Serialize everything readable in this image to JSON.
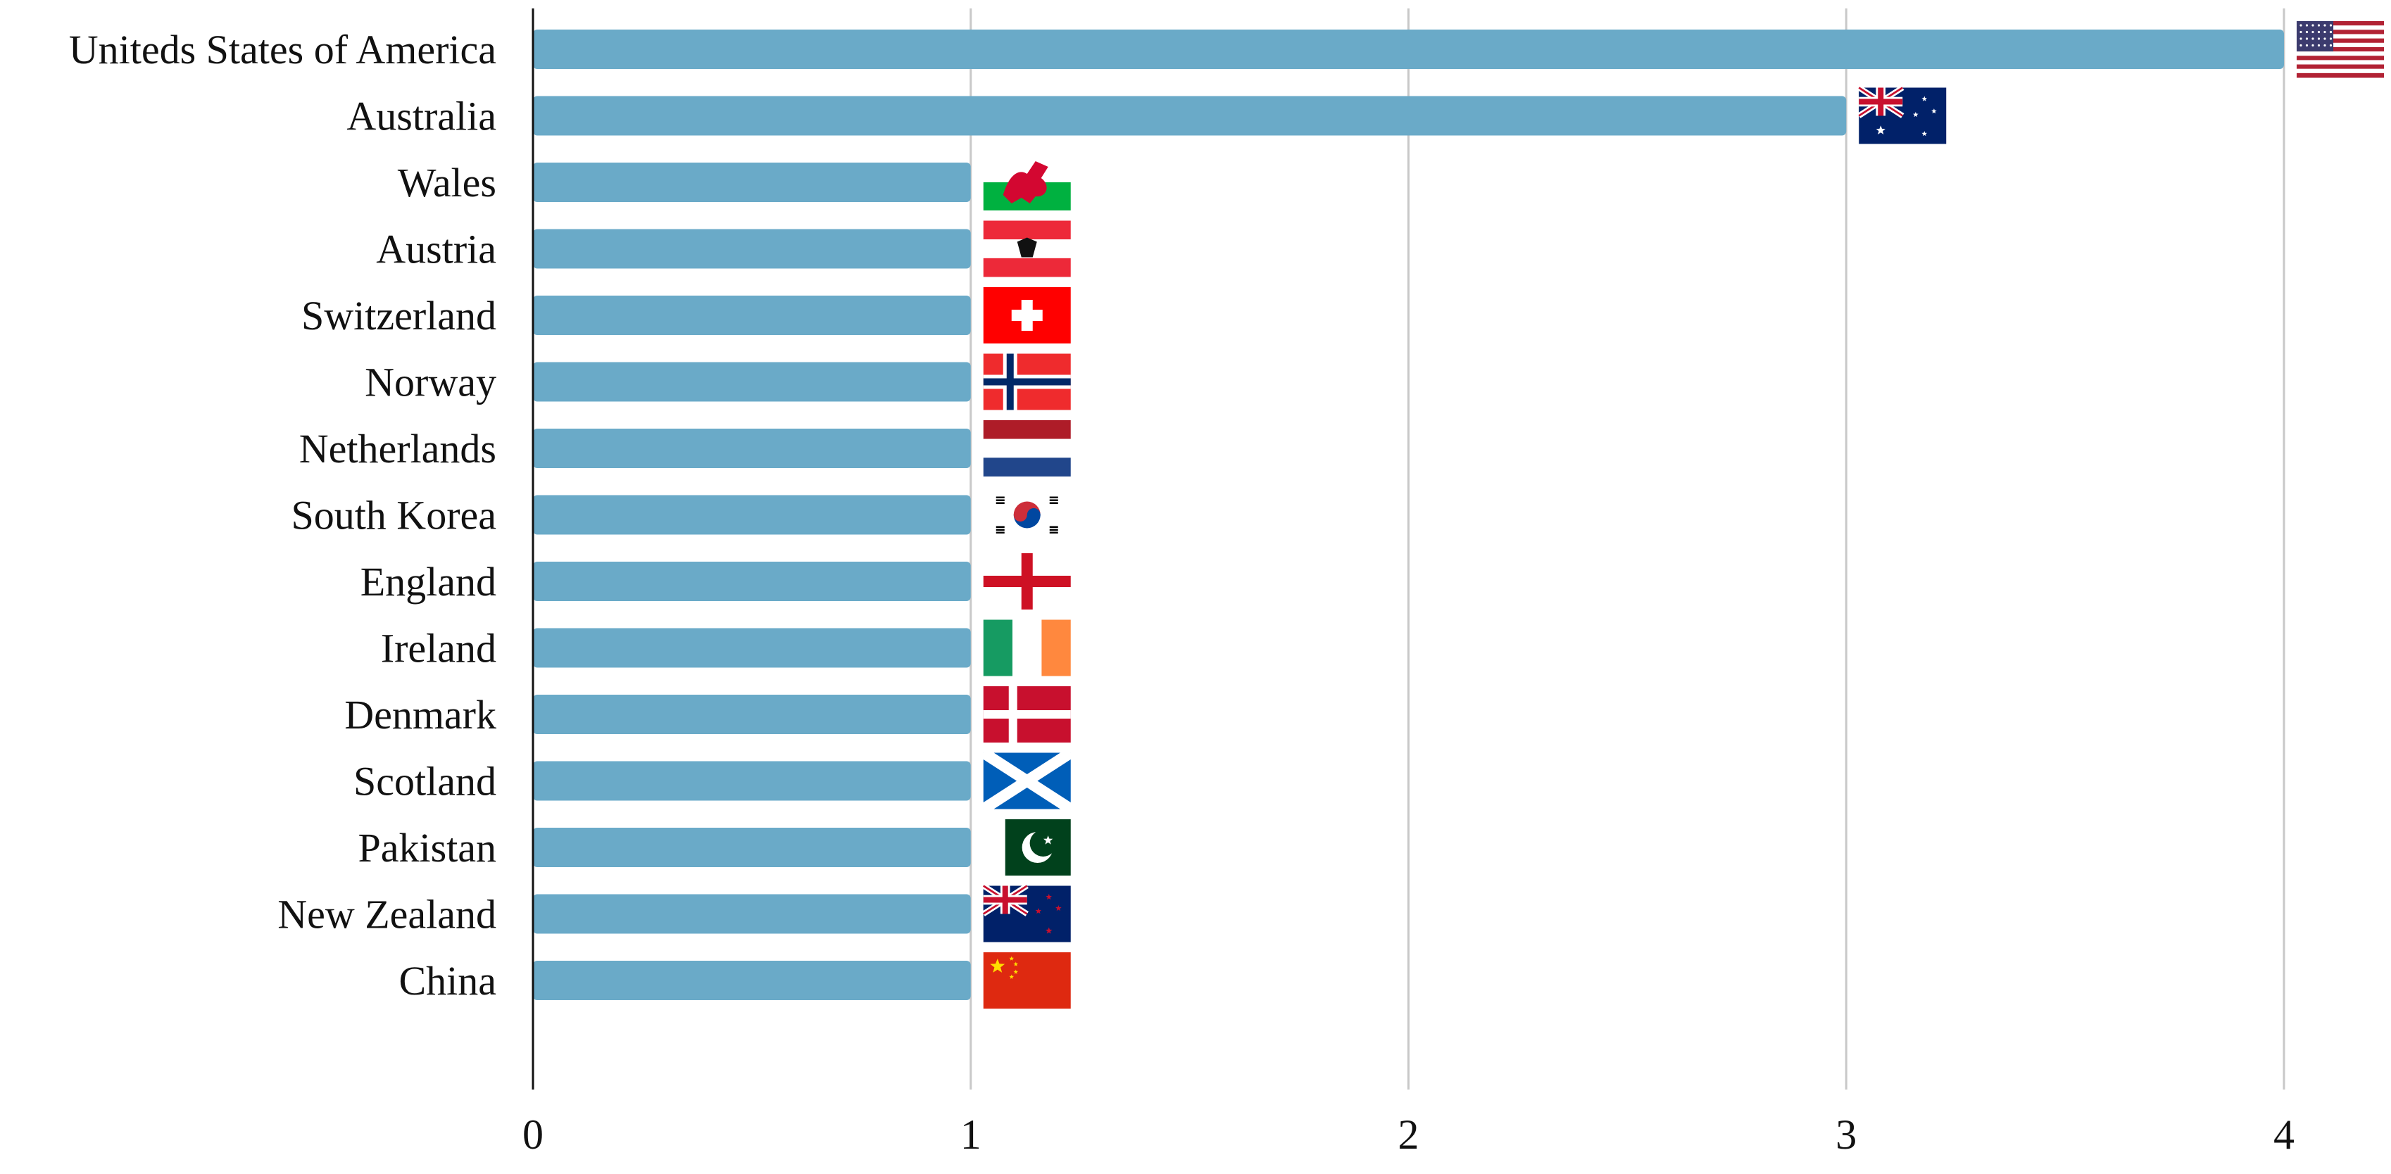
{
  "colors": {
    "bar": "#6aaac8",
    "grid": "#c8c8c8",
    "axis": "#111111",
    "text": "#111111"
  },
  "chart_data": {
    "type": "bar",
    "orientation": "horizontal",
    "categories": [
      "Uniteds States of America",
      "Australia",
      "Wales",
      "Austria",
      "Switzerland",
      "Norway",
      "Netherlands",
      "South Korea",
      "England",
      "Ireland",
      "Denmark",
      "Scotland",
      "Pakistan",
      "New Zealand",
      "China"
    ],
    "values": [
      4,
      3,
      1,
      1,
      1,
      1,
      1,
      1,
      1,
      1,
      1,
      1,
      1,
      1,
      1
    ],
    "flags": [
      "usa-flag-icon",
      "australia-flag-icon",
      "wales-flag-icon",
      "austria-flag-icon",
      "switzerland-flag-icon",
      "norway-flag-icon",
      "netherlands-flag-icon",
      "south-korea-flag-icon",
      "england-flag-icon",
      "ireland-flag-icon",
      "denmark-flag-icon",
      "scotland-flag-icon",
      "pakistan-flag-icon",
      "new-zealand-flag-icon",
      "china-flag-icon"
    ],
    "xticks": [
      "0",
      "1",
      "2",
      "3",
      "4"
    ],
    "xlim": [
      0,
      4
    ],
    "grid": true,
    "legend": "none"
  }
}
